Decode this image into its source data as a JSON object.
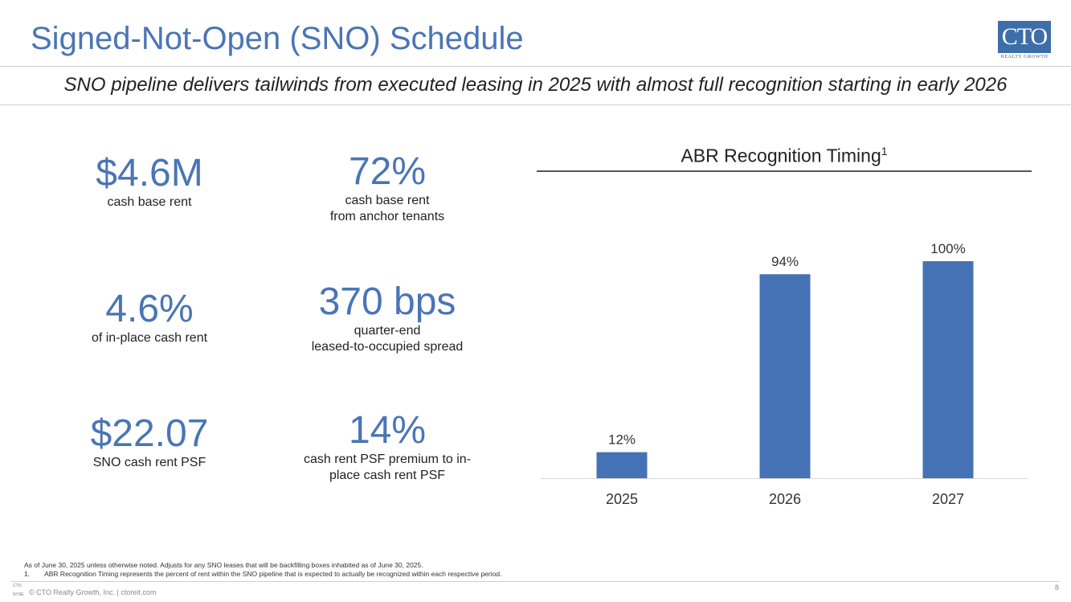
{
  "header": {
    "title": "Signed-Not-Open (SNO) Schedule",
    "subtitle": "SNO pipeline delivers tailwinds from executed leasing in 2025 with almost full recognition starting in early 2026"
  },
  "logo": {
    "text": "CTO",
    "tagline": "REALTY GROWTH"
  },
  "stats": [
    {
      "value": "$4.6M",
      "label_lines": [
        "cash base rent"
      ]
    },
    {
      "value": "72%",
      "label_lines": [
        "cash base rent",
        "from anchor tenants"
      ]
    },
    {
      "value": "4.6%",
      "label_lines": [
        "of in-place cash rent"
      ]
    },
    {
      "value": "370 bps",
      "label_lines": [
        "quarter-end",
        "leased-to-occupied spread"
      ]
    },
    {
      "value": "$22.07",
      "label_lines": [
        "SNO cash rent PSF"
      ]
    },
    {
      "value": "14%",
      "label_lines": [
        "cash rent PSF premium to in-",
        "place cash rent PSF"
      ]
    }
  ],
  "chart_data": {
    "type": "bar",
    "title": "ABR Recognition Timing",
    "title_superscript": "1",
    "categories": [
      "2025",
      "2026",
      "2027"
    ],
    "values": [
      12,
      94,
      100
    ],
    "data_labels": [
      "12%",
      "94%",
      "100%"
    ],
    "ylim": [
      0,
      100
    ],
    "xlabel": "",
    "ylabel": "",
    "bar_color": "#4472b4"
  },
  "footnotes": {
    "line1": "As of June 30, 2025 unless otherwise noted. Adjusts for any SNO leases that will be backfilling boxes inhabited as of June 30, 2025.",
    "line2_num": "1.",
    "line2_text": "ABR Recognition Timing represents the percent of rent within the SNO pipeline that is expected to actually be recognized within each respective period."
  },
  "footer": {
    "logo_text": "CTO",
    "exchange": "NYSE",
    "copyright": "© CTO Realty Growth, Inc. | ctoreit.com",
    "page_number": "8"
  },
  "colors": {
    "accent": "#4a75b5",
    "bar": "#4472b4"
  }
}
